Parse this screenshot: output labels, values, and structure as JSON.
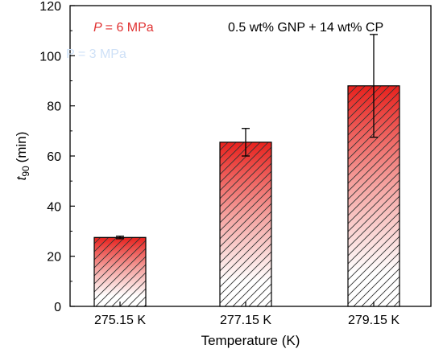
{
  "chart_data": {
    "type": "bar",
    "categories": [
      "275.15 K",
      "277.15 K",
      "279.15 K"
    ],
    "values": [
      27.5,
      65.5,
      88
    ],
    "error_bars": [
      {
        "lower": 27.0,
        "upper": 28.0
      },
      {
        "lower": 60.0,
        "upper": 71.0
      },
      {
        "lower": 67.5,
        "upper": 108.5
      }
    ],
    "xlabel": "Temperature (K)",
    "ylabel_var": "t",
    "ylabel_sub": "90",
    "ylabel_unit": "(min)",
    "ylim": [
      0,
      120
    ],
    "yticks": [
      0,
      20,
      40,
      60,
      80,
      100,
      120
    ],
    "grid": false,
    "annotations": {
      "pressure_var": "P",
      "pressure_value": "= 6 MPa",
      "composition": "0.5 wt% GNP + 14 wt% CP",
      "faded_label": "P = 3 MPa"
    },
    "colors": {
      "bar_top": "#e8211d",
      "bar_mid": "#f5a3a0",
      "bar_bottom": "#ffffff",
      "hatch": "#333333",
      "pressure_text": "#e03131",
      "faded_text": "#cfe1f7"
    }
  }
}
